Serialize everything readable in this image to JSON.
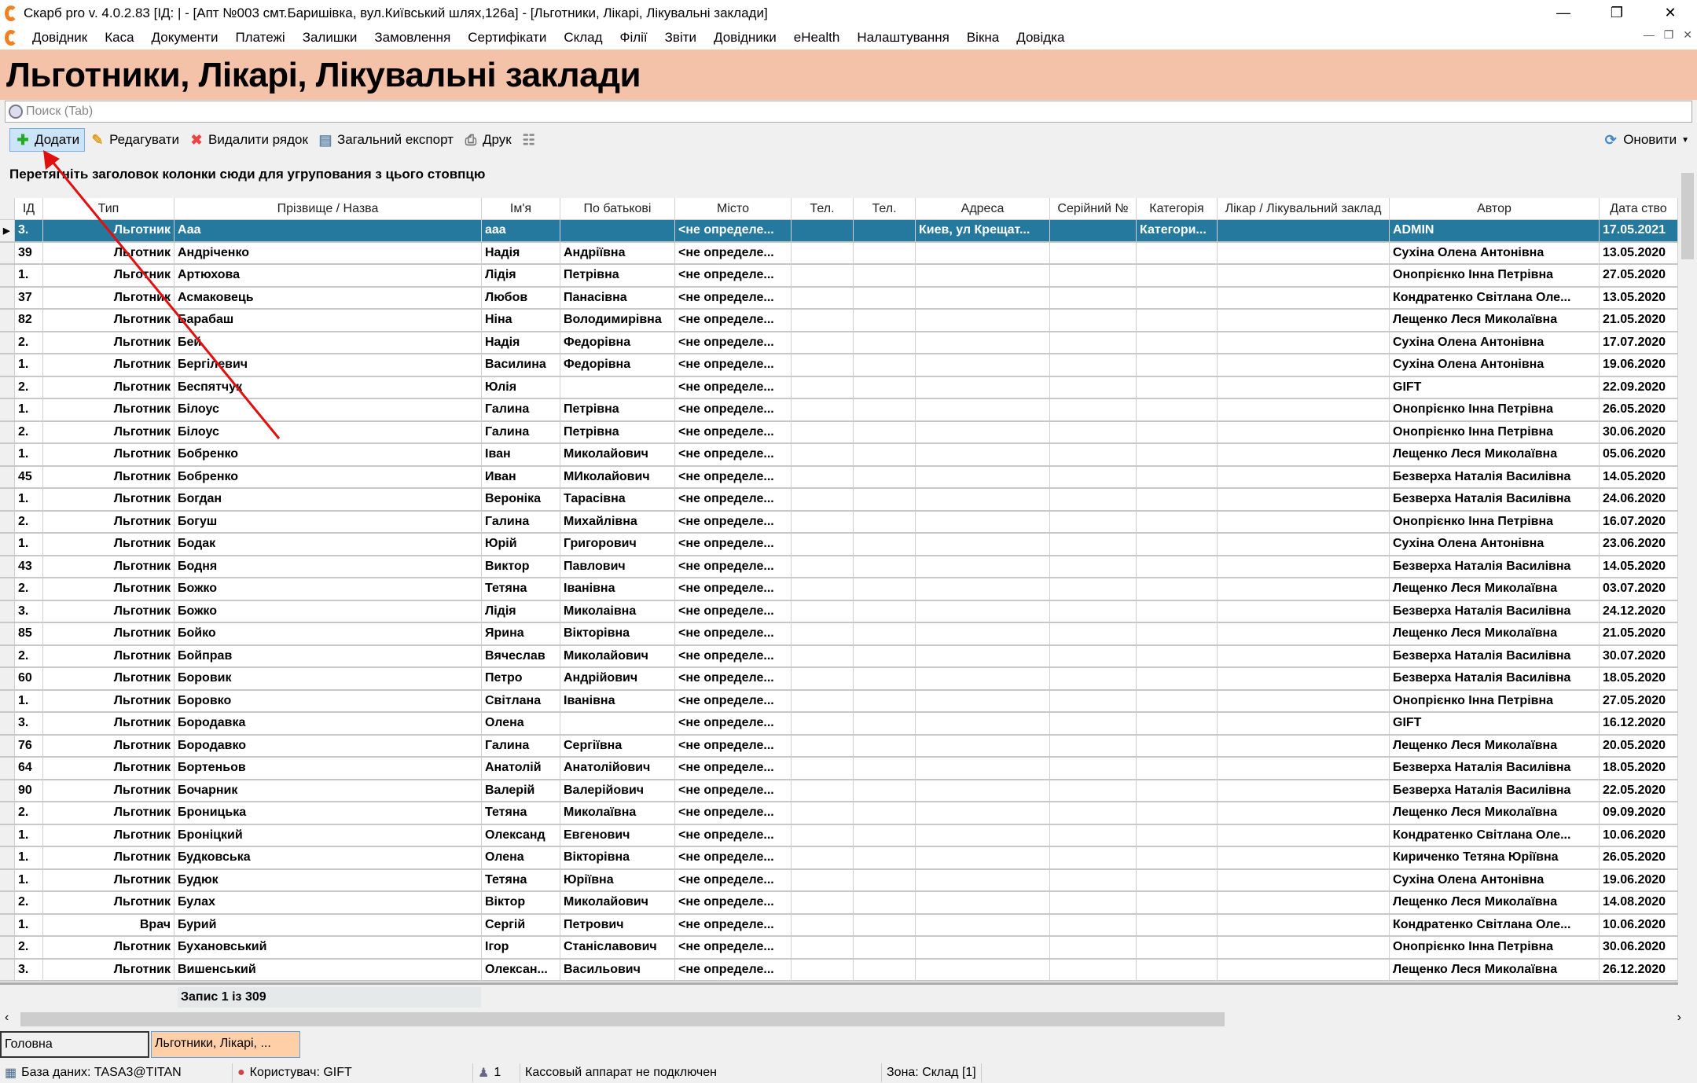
{
  "window": {
    "title": "Скарб pro v. 4.0.2.83 [ІД:      | - [Апт №003 смт.Баришівка, вул.Київський шлях,126а] - [Льготники, Лікарі, Лікувальні заклади]",
    "min": "—",
    "max": "❐",
    "close": "✕"
  },
  "menu": [
    "Довідник",
    "Каса",
    "Документи",
    "Платежі",
    "Залишки",
    "Замовлення",
    "Сертифікати",
    "Склад",
    "Філії",
    "Звіти",
    "Довідники",
    "eHealth",
    "Налаштування",
    "Вікна",
    "Довідка"
  ],
  "page_title": "Льготники, Лікарі, Лікувальні заклади",
  "search": {
    "placeholder": "Поиск (Tab)"
  },
  "toolbar": {
    "add": "Додати",
    "edit": "Редагувати",
    "delete": "Видалити рядок",
    "export": "Загальний експорт",
    "print": "Друк",
    "refresh": "Оновити"
  },
  "group_hint": "Перетягніть заголовок колонки сюди для угрупования з цього стовпцю",
  "columns": [
    "ІД",
    "Тип",
    "Прізвище / Назва",
    "Ім'я",
    "По батькові",
    "Місто",
    "Тел.",
    "Тел.",
    "Адреса",
    "Серійний №",
    "Категорія",
    "Лікар / Лікувальний заклад",
    "Автор",
    "Дата ство"
  ],
  "rows": [
    [
      "3.",
      "Льготник",
      "Ааа",
      "ааа",
      "",
      "<не определе...",
      "",
      "",
      "Киев, ул Крещат...",
      "",
      "Категори...",
      "",
      "ADMIN",
      "17.05.2021"
    ],
    [
      "39",
      "Льготник",
      "Андріченко",
      "Надія",
      "Андріївна",
      "<не определе...",
      "",
      "",
      "",
      "",
      "",
      "",
      "Сухіна Олена Антонівна",
      "13.05.2020"
    ],
    [
      "1.",
      "Льготник",
      "Артюхова",
      "Лідія",
      "Петрівна",
      "<не определе...",
      "",
      "",
      "",
      "",
      "",
      "",
      "Онопрієнко Інна Петрівна",
      "27.05.2020"
    ],
    [
      "37",
      "Льготник",
      "Асмаковець",
      "Любов",
      "Панасівна",
      "<не определе...",
      "",
      "",
      "",
      "",
      "",
      "",
      "Кондратенко Світлана Оле...",
      "13.05.2020"
    ],
    [
      "82",
      "Льготник",
      "Барабаш",
      "Ніна",
      "Володимирівна",
      "<не определе...",
      "",
      "",
      "",
      "",
      "",
      "",
      "Лещенко Леся Миколаївна",
      "21.05.2020"
    ],
    [
      "2.",
      "Льготник",
      "Бей",
      "Надія",
      "Федорівна",
      "<не определе...",
      "",
      "",
      "",
      "",
      "",
      "",
      "Сухіна Олена Антонівна",
      "17.07.2020"
    ],
    [
      "1.",
      "Льготник",
      "Бергілевич",
      "Василина",
      "Федорівна",
      "<не определе...",
      "",
      "",
      "",
      "",
      "",
      "",
      "Сухіна Олена Антонівна",
      "19.06.2020"
    ],
    [
      "2.",
      "Льготник",
      "Беспятчук",
      "Юлія",
      "",
      "<не определе...",
      "",
      "",
      "",
      "",
      "",
      "",
      "GIFT",
      "22.09.2020"
    ],
    [
      "1.",
      "Льготник",
      "Білоус",
      "Галина",
      "Петрівна",
      "<не определе...",
      "",
      "",
      "",
      "",
      "",
      "",
      "Онопрієнко Інна Петрівна",
      "26.05.2020"
    ],
    [
      "2.",
      "Льготник",
      "Білоус",
      "Галина",
      "Петрівна",
      "<не определе...",
      "",
      "",
      "",
      "",
      "",
      "",
      "Онопрієнко Інна Петрівна",
      "30.06.2020"
    ],
    [
      "1.",
      "Льготник",
      "Бобренко",
      "Іван",
      "Миколайович",
      "<не определе...",
      "",
      "",
      "",
      "",
      "",
      "",
      "Лещенко Леся Миколаївна",
      "05.06.2020"
    ],
    [
      "45",
      "Льготник",
      "Бобренко",
      "Иван",
      "МИколайович",
      "<не определе...",
      "",
      "",
      "",
      "",
      "",
      "",
      "Безверха Наталія Василівна",
      "14.05.2020"
    ],
    [
      "1.",
      "Льготник",
      "Богдан",
      "Вероніка",
      "Тарасівна",
      "<не определе...",
      "",
      "",
      "",
      "",
      "",
      "",
      "Безверха Наталія Василівна",
      "24.06.2020"
    ],
    [
      "2.",
      "Льготник",
      "Богуш",
      "Галина",
      "Михайлівна",
      "<не определе...",
      "",
      "",
      "",
      "",
      "",
      "",
      "Онопрієнко Інна Петрівна",
      "16.07.2020"
    ],
    [
      "1.",
      "Льготник",
      "Бодак",
      "Юрій",
      "Григорович",
      "<не определе...",
      "",
      "",
      "",
      "",
      "",
      "",
      "Сухіна Олена Антонівна",
      "23.06.2020"
    ],
    [
      "43",
      "Льготник",
      "Бодня",
      "Виктор",
      "Павлович",
      "<не определе...",
      "",
      "",
      "",
      "",
      "",
      "",
      "Безверха Наталія Василівна",
      "14.05.2020"
    ],
    [
      "2.",
      "Льготник",
      "Божко",
      "Тетяна",
      "Іванівна",
      "<не определе...",
      "",
      "",
      "",
      "",
      "",
      "",
      "Лещенко Леся Миколаївна",
      "03.07.2020"
    ],
    [
      "3.",
      "Льготник",
      "Божко",
      "Лідія",
      "Миколаівна",
      "<не определе...",
      "",
      "",
      "",
      "",
      "",
      "",
      "Безверха Наталія Василівна",
      "24.12.2020"
    ],
    [
      "85",
      "Льготник",
      "Бойко",
      "Ярина",
      "Вікторівна",
      "<не определе...",
      "",
      "",
      "",
      "",
      "",
      "",
      "Лещенко Леся Миколаївна",
      "21.05.2020"
    ],
    [
      "2.",
      "Льготник",
      "Бойправ",
      "Вячеслав",
      "Миколайович",
      "<не определе...",
      "",
      "",
      "",
      "",
      "",
      "",
      "Безверха Наталія Василівна",
      "30.07.2020"
    ],
    [
      "60",
      "Льготник",
      "Боровик",
      "Петро",
      "Андрійович",
      "<не определе...",
      "",
      "",
      "",
      "",
      "",
      "",
      "Безверха Наталія Василівна",
      "18.05.2020"
    ],
    [
      "1.",
      "Льготник",
      "Боровко",
      "Світлана",
      "Іванівна",
      "<не определе...",
      "",
      "",
      "",
      "",
      "",
      "",
      "Онопрієнко Інна Петрівна",
      "27.05.2020"
    ],
    [
      "3.",
      "Льготник",
      "Бородавка",
      "Олена",
      "",
      "<не определе...",
      "",
      "",
      "",
      "",
      "",
      "",
      "GIFT",
      "16.12.2020"
    ],
    [
      "76",
      "Льготник",
      "Бородавко",
      "Галина",
      "Сергіївна",
      "<не определе...",
      "",
      "",
      "",
      "",
      "",
      "",
      "Лещенко Леся Миколаївна",
      "20.05.2020"
    ],
    [
      "64",
      "Льготник",
      "Бортеньов",
      "Анатолій",
      "Анатолійович",
      "<не определе...",
      "",
      "",
      "",
      "",
      "",
      "",
      "Безверха Наталія Василівна",
      "18.05.2020"
    ],
    [
      "90",
      "Льготник",
      "Бочарник",
      "Валерій",
      "Валерійович",
      "<не определе...",
      "",
      "",
      "",
      "",
      "",
      "",
      "Безверха Наталія Василівна",
      "22.05.2020"
    ],
    [
      "2.",
      "Льготник",
      "Броницька",
      "Тетяна",
      "Миколаївна",
      "<не определе...",
      "",
      "",
      "",
      "",
      "",
      "",
      "Лещенко Леся Миколаївна",
      "09.09.2020"
    ],
    [
      "1.",
      "Льготник",
      "Броніцкий",
      "Олександ",
      "Евгенович",
      "<не определе...",
      "",
      "",
      "",
      "",
      "",
      "",
      "Кондратенко Світлана Оле...",
      "10.06.2020"
    ],
    [
      "1.",
      "Льготник",
      "Будковська",
      "Олена",
      "Вікторівна",
      "<не определе...",
      "",
      "",
      "",
      "",
      "",
      "",
      "Кириченко Тетяна Юріївна",
      "26.05.2020"
    ],
    [
      "1.",
      "Льготник",
      "Будюк",
      "Тетяна",
      "Юріївна",
      "<не определе...",
      "",
      "",
      "",
      "",
      "",
      "",
      "Сухіна Олена Антонівна",
      "19.06.2020"
    ],
    [
      "2.",
      "Льготник",
      "Булах",
      "Віктор",
      "Миколайович",
      "<не определе...",
      "",
      "",
      "",
      "",
      "",
      "",
      "Лещенко Леся Миколаївна",
      "14.08.2020"
    ],
    [
      "1.",
      "Врач",
      "Бурий",
      "Сергій",
      "Петрович",
      "<не определе...",
      "",
      "",
      "",
      "",
      "",
      "",
      "Кондратенко Світлана Оле...",
      "10.06.2020"
    ],
    [
      "2.",
      "Льготник",
      "Бухановський",
      "Ігор",
      "Станіславович",
      "<не определе...",
      "",
      "",
      "",
      "",
      "",
      "",
      "Онопрієнко Інна Петрівна",
      "30.06.2020"
    ],
    [
      "3.",
      "Льготник",
      "Вишенський",
      "Олексан...",
      "Васильович",
      "<не определе...",
      "",
      "",
      "",
      "",
      "",
      "",
      "Лещенко Леся Миколаївна",
      "26.12.2020"
    ]
  ],
  "record_count": "Запис 1 із 309",
  "tabs": [
    "Головна",
    "Льготники, Лікарі, ..."
  ],
  "status": {
    "db": "База даних: TASA3@TITAN",
    "user": "Користувач: GIFT",
    "count": "1",
    "cash": "Кассовый аппарат не подключен",
    "zone": "Зона: Склад [1]"
  },
  "colors": {
    "header_band": "#f4c2a8",
    "selected_row": "#25799e",
    "annotation_arrow": "#e01010"
  }
}
